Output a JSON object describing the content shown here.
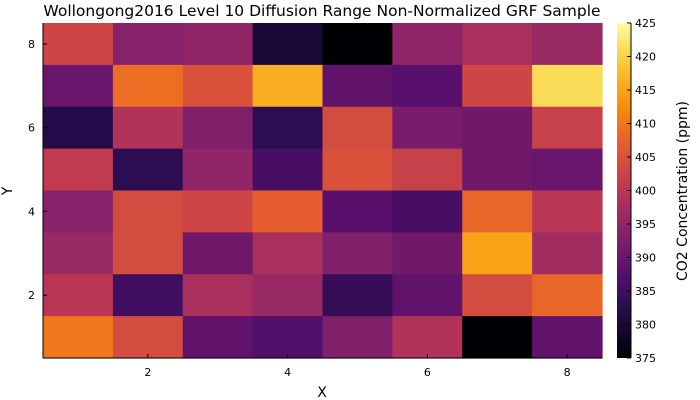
{
  "chart_data": {
    "type": "heatmap",
    "title": "Wollongong2016 Level 10 Diffusion Range Non-Normalized GRF Sample",
    "xlabel": "X",
    "ylabel": "Y",
    "x": [
      1,
      2,
      3,
      4,
      5,
      6,
      7,
      8
    ],
    "y": [
      1,
      2,
      3,
      4,
      5,
      6,
      7,
      8
    ],
    "xticks": [
      2,
      4,
      6,
      8
    ],
    "yticks": [
      2,
      4,
      6,
      8
    ],
    "xlim": [
      0.5,
      8.5
    ],
    "ylim": [
      0.5,
      8.5
    ],
    "colormap": "inferno",
    "colorbar": {
      "label": "CO2 Concentration (ppm)",
      "range": [
        375,
        425
      ],
      "ticks": [
        375,
        380,
        385,
        390,
        395,
        400,
        405,
        410,
        415,
        420,
        425
      ]
    },
    "rows_top_to_bottom": [
      {
        "y": 8,
        "values": [
          403,
          394,
          395,
          380,
          375,
          395,
          398,
          396
        ]
      },
      {
        "y": 7,
        "values": [
          390,
          409,
          405,
          416,
          389,
          388,
          403,
          421
        ]
      },
      {
        "y": 6,
        "values": [
          382,
          399,
          393,
          383,
          404,
          392,
          391,
          402
        ]
      },
      {
        "y": 5,
        "values": [
          401,
          383,
          395,
          386,
          405,
          402,
          391,
          390
        ]
      },
      {
        "y": 4,
        "values": [
          394,
          404,
          403,
          407,
          388,
          386,
          408,
          400
        ]
      },
      {
        "y": 3,
        "values": [
          396,
          404,
          391,
          398,
          393,
          391,
          415,
          397
        ]
      },
      {
        "y": 2,
        "values": [
          400,
          385,
          398,
          396,
          384,
          389,
          404,
          408
        ]
      },
      {
        "y": 1,
        "values": [
          410,
          404,
          389,
          387,
          393,
          399,
          375,
          389
        ]
      }
    ]
  }
}
